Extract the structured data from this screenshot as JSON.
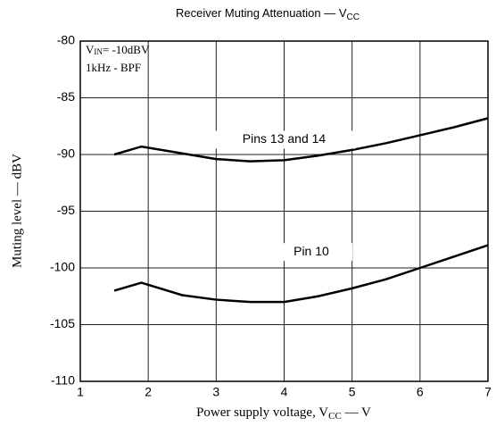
{
  "chart_data": {
    "type": "line",
    "title": {
      "text": "Receiver Muting Attenuation — V",
      "sub": "CC"
    },
    "x_label": {
      "text": "Power supply voltage, V",
      "sub": "CC",
      "tail": " — V"
    },
    "y_label": "Muting level  — dBV",
    "annotations": [
      {
        "text": "V",
        "sub": "IN",
        "tail": "= -10dBV"
      },
      {
        "text": "1kHz - BPF"
      }
    ],
    "xlim": [
      1,
      7
    ],
    "xticks": [
      1,
      2,
      3,
      4,
      5,
      6,
      7
    ],
    "ylim": [
      -110,
      -80
    ],
    "yticks": [
      -80,
      -85,
      -90,
      -95,
      -100,
      -105,
      -110
    ],
    "grid": true,
    "series": [
      {
        "name": "Pins 13 and 14",
        "color": "#000000",
        "x": [
          1.5,
          1.9,
          2.5,
          3,
          3.5,
          4,
          4.5,
          5,
          5.5,
          6,
          6.5,
          7
        ],
        "values": [
          -90,
          -89.3,
          -89.9,
          -90.4,
          -90.6,
          -90.5,
          -90.1,
          -89.6,
          -89,
          -88.3,
          -87.6,
          -86.8
        ]
      },
      {
        "name": "Pin 10",
        "color": "#000000",
        "x": [
          1.5,
          1.9,
          2.5,
          3,
          3.5,
          4,
          4.5,
          5,
          5.5,
          6,
          6.5,
          7
        ],
        "values": [
          -102,
          -101.3,
          -102.4,
          -102.8,
          -103,
          -103,
          -102.5,
          -101.8,
          -101,
          -100,
          -99,
          -98
        ]
      }
    ]
  }
}
